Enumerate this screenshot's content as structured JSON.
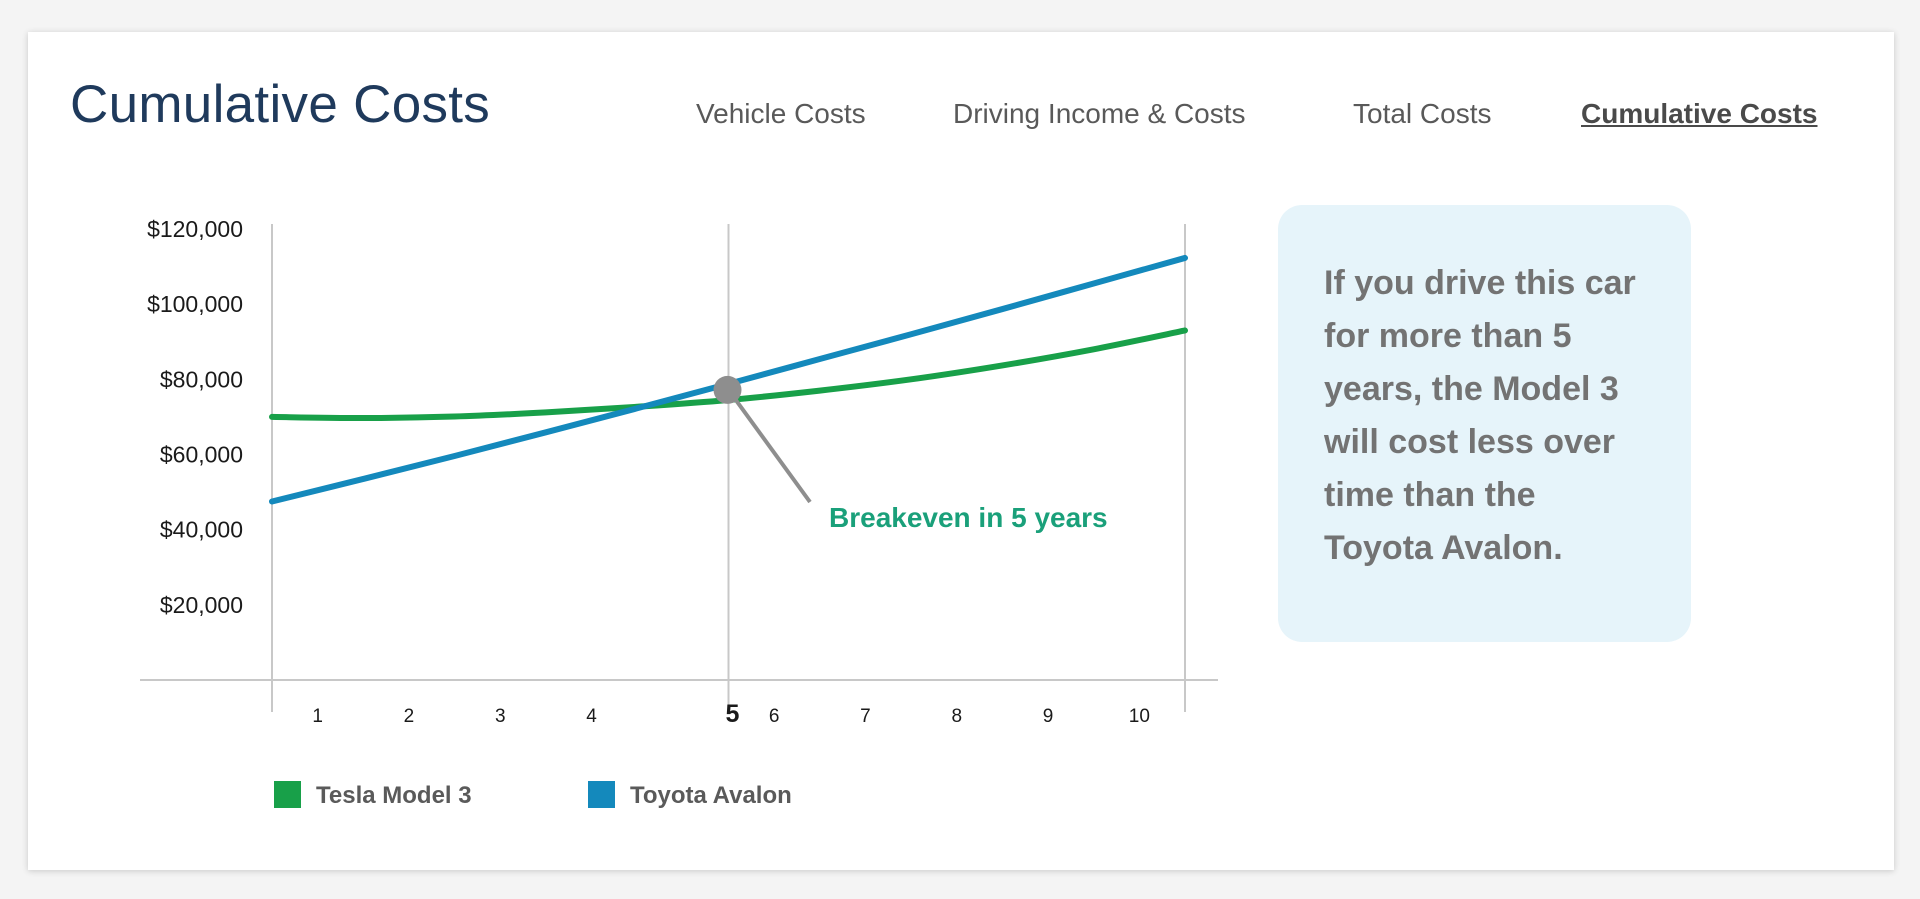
{
  "page": {
    "title": "Cumulative Costs"
  },
  "nav": {
    "tabs": [
      {
        "label": "Vehicle Costs",
        "active": false
      },
      {
        "label": "Driving Income & Costs",
        "active": false
      },
      {
        "label": "Total Costs",
        "active": false
      },
      {
        "label": "Cumulative Costs",
        "active": true
      }
    ]
  },
  "info_box": {
    "text": "If you drive this car for more than 5 years, the Model 3 will cost less over time than the Toyota Avalon."
  },
  "colors": {
    "tesla": "#18a049",
    "toyota": "#1489bc",
    "annotation": "#1aa07a",
    "marker": "#8e8e8e",
    "title": "#1f3a5c"
  },
  "chart_data": {
    "type": "line",
    "x": [
      0,
      1,
      2,
      3,
      4,
      5,
      6,
      7,
      8,
      9,
      10
    ],
    "x_tick_labels": [
      "1",
      "2",
      "3",
      "4",
      "5",
      "6",
      "7",
      "8",
      "9",
      "10"
    ],
    "highlight_x": 5,
    "ylim": [
      0,
      120000
    ],
    "y_tick_labels": [
      "$120,000",
      "$100,000",
      "$80,000",
      "$60,000",
      "$40,000",
      "$20,000"
    ],
    "y_ticks": [
      120000,
      100000,
      80000,
      60000,
      40000,
      20000
    ],
    "series": [
      {
        "name": "Tesla Model 3",
        "color": "#18a049",
        "values": [
          70000,
          69700,
          70100,
          71200,
          72700,
          74500,
          77000,
          80000,
          83700,
          88000,
          93000
        ]
      },
      {
        "name": "Toyota Avalon",
        "color": "#1489bc",
        "values": [
          47500,
          53500,
          59600,
          65900,
          72300,
          78800,
          85400,
          92000,
          98700,
          105500,
          112300
        ]
      }
    ],
    "annotation": {
      "text": "Breakeven in 5 years",
      "x": 5
    },
    "grid": false,
    "legend": "bottom-left"
  }
}
